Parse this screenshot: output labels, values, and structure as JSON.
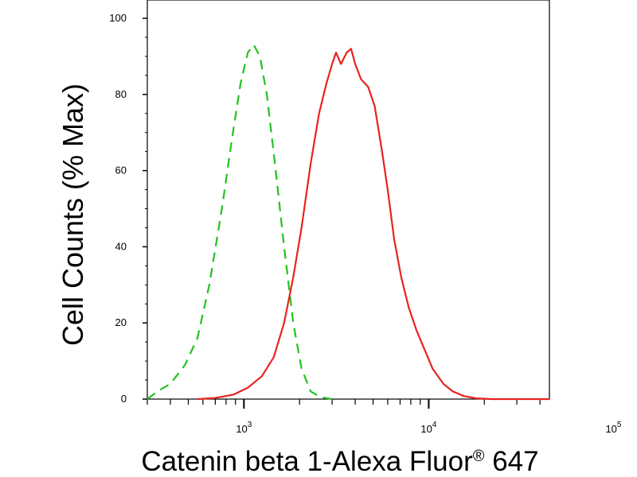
{
  "chart_data": {
    "type": "line",
    "title": "",
    "xlabel": "Catenin beta 1-Alexa Fluor",
    "xlabel_mark": "®",
    "xlabel_suffix": " 647",
    "ylabel": "Cell Counts (% Max)",
    "x_scale": "log",
    "xlim": [
      300,
      45000
    ],
    "ylim": [
      0,
      100
    ],
    "grid": false,
    "legend": "none",
    "x_major_ticks": [
      {
        "value": 1000,
        "base": "10",
        "exp": "3"
      },
      {
        "value": 10000,
        "base": "10",
        "exp": "4"
      },
      {
        "value": 100000,
        "base": "10",
        "exp": "5"
      }
    ],
    "y_ticks": [
      {
        "value": 0,
        "label": "0"
      },
      {
        "value": 20,
        "label": "20"
      },
      {
        "value": 40,
        "label": "40"
      },
      {
        "value": 60,
        "label": "60"
      },
      {
        "value": 80,
        "label": "80"
      },
      {
        "value": 100,
        "label": "100"
      }
    ],
    "series": [
      {
        "color": "#22c21f",
        "style": "dashed",
        "points": [
          [
            300,
            0
          ],
          [
            340,
            2
          ],
          [
            400,
            4
          ],
          [
            480,
            9
          ],
          [
            560,
            16
          ],
          [
            650,
            30
          ],
          [
            760,
            50
          ],
          [
            860,
            68
          ],
          [
            960,
            83
          ],
          [
            1050,
            91
          ],
          [
            1130,
            93
          ],
          [
            1220,
            90
          ],
          [
            1330,
            80
          ],
          [
            1470,
            62
          ],
          [
            1650,
            40
          ],
          [
            1850,
            20
          ],
          [
            2050,
            8
          ],
          [
            2300,
            2
          ],
          [
            2600,
            0.5
          ],
          [
            3000,
            0
          ]
        ]
      },
      {
        "color": "#e8231f",
        "style": "solid",
        "points": [
          [
            560,
            0
          ],
          [
            700,
            0.3
          ],
          [
            880,
            1.2
          ],
          [
            1050,
            3
          ],
          [
            1250,
            6
          ],
          [
            1450,
            11
          ],
          [
            1650,
            20
          ],
          [
            1850,
            32
          ],
          [
            2050,
            45
          ],
          [
            2300,
            62
          ],
          [
            2550,
            75
          ],
          [
            2800,
            83
          ],
          [
            3000,
            88
          ],
          [
            3150,
            91
          ],
          [
            3350,
            88
          ],
          [
            3600,
            91
          ],
          [
            3800,
            92
          ],
          [
            4000,
            88
          ],
          [
            4300,
            84
          ],
          [
            4700,
            82
          ],
          [
            5100,
            77
          ],
          [
            5550,
            66
          ],
          [
            6000,
            55
          ],
          [
            6500,
            42
          ],
          [
            7100,
            32
          ],
          [
            7800,
            24
          ],
          [
            8600,
            18
          ],
          [
            9500,
            13
          ],
          [
            10500,
            8
          ],
          [
            12000,
            4
          ],
          [
            13500,
            2
          ],
          [
            15500,
            0.8
          ],
          [
            18000,
            0.2
          ],
          [
            22000,
            0
          ],
          [
            45000,
            0
          ]
        ]
      }
    ]
  }
}
